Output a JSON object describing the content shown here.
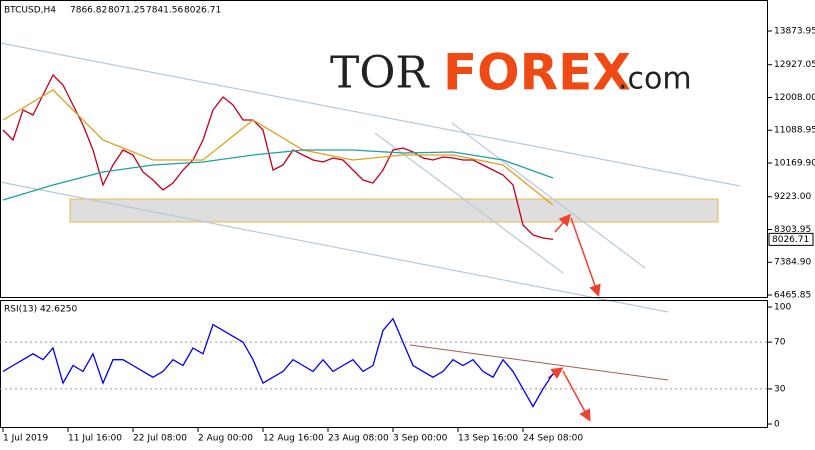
{
  "chart_data": [
    {
      "type": "line",
      "symbol": "BTCUSD,H4",
      "ohlc": [
        "7866.82",
        "8071.25",
        "7841.56",
        "8026.71"
      ],
      "watermark": [
        "TOR",
        "FOREX",
        ".com"
      ],
      "xlim": [
        -0.3,
        76.5
      ],
      "xticks": [
        {
          "value": 0,
          "label": "1 Jul 2019"
        },
        {
          "value": 6.5,
          "label": "11 Jul 16:00"
        },
        {
          "value": 13,
          "label": "22 Jul 08:00"
        },
        {
          "value": 19.5,
          "label": "2 Aug 00:00"
        },
        {
          "value": 26,
          "label": "12 Aug 16:00"
        },
        {
          "value": 32.5,
          "label": "23 Aug 08:00"
        },
        {
          "value": 39,
          "label": "3 Sep 00:00"
        },
        {
          "value": 45.5,
          "label": "13 Sep 16:00"
        },
        {
          "value": 52,
          "label": "24 Sep 08:00"
        }
      ],
      "ylim": [
        6381.7,
        14603.5
      ],
      "yticks": [
        13873.95,
        {
          "value": 12927.05,
          "label": "12927.05"
        },
        {
          "value": 12008.0,
          "label": "12008.00"
        },
        11088.95,
        {
          "value": 10169.9,
          "label": "10169.90"
        },
        {
          "value": 9223.0,
          "label": "9223.00"
        },
        8303.95,
        {
          "value": 7384.9,
          "label": "7384.90"
        },
        6465.85
      ],
      "series": [
        {
          "color": "#c0001a",
          "x": [
            0,
            1,
            2,
            3,
            4,
            5,
            6,
            7,
            8,
            9,
            10,
            11,
            12,
            13,
            14,
            15,
            16,
            17,
            18,
            19,
            20,
            21,
            22,
            23,
            24,
            25,
            26,
            27,
            28,
            29,
            30,
            31,
            32,
            33,
            34,
            35,
            36,
            37,
            38,
            39,
            40,
            41,
            42,
            43,
            44,
            45,
            46,
            47,
            48,
            49,
            50,
            51,
            52,
            53,
            54,
            55
          ],
          "values": [
            11096,
            10815,
            11657,
            11517,
            12078,
            12639,
            12359,
            11797,
            11236,
            10535,
            9553,
            10113,
            10535,
            10394,
            9917,
            9693,
            9412,
            9609,
            9973,
            10254,
            10815,
            11657,
            12022,
            11797,
            11377,
            11377,
            11096,
            9973,
            10113,
            10535,
            10394,
            10254,
            10198,
            10310,
            10254,
            9973,
            9693,
            9609,
            9973,
            10535,
            10591,
            10479,
            10310,
            10254,
            10338,
            10310,
            10254,
            10254,
            10113,
            9973,
            9833,
            9553,
            8430,
            8150,
            8066,
            8027
          ]
        },
        {
          "color": "#e0a020",
          "x": [
            0,
            5,
            10,
            15,
            20,
            25,
            30,
            35,
            40,
            45,
            50,
            55
          ],
          "values": [
            11377,
            12218,
            10815,
            10254,
            10254,
            11377,
            10535,
            10254,
            10394,
            10394,
            10113,
            8991
          ]
        },
        {
          "color": "#20a0a0",
          "x": [
            0,
            5,
            10,
            15,
            20,
            25,
            30,
            35,
            40,
            45,
            50,
            55
          ],
          "values": [
            9132,
            9553,
            9917,
            10113,
            10198,
            10394,
            10535,
            10535,
            10451,
            10479,
            10254,
            9749
          ]
        }
      ]
    },
    {
      "type": "line",
      "title": "RSI(13) 42.6250",
      "ylim": [
        -3.4,
        104.3
      ],
      "yticks": [
        100,
        70,
        30,
        0
      ],
      "series": [
        {
          "color": "#0000ee",
          "x": [
            0,
            1,
            2,
            3,
            4,
            5,
            6,
            7,
            8,
            9,
            10,
            11,
            12,
            13,
            14,
            15,
            16,
            17,
            18,
            19,
            20,
            21,
            22,
            23,
            24,
            25,
            26,
            27,
            28,
            29,
            30,
            31,
            32,
            33,
            34,
            35,
            36,
            37,
            38,
            39,
            40,
            41,
            42,
            43,
            44,
            45,
            46,
            47,
            48,
            49,
            50,
            51,
            52,
            53,
            54,
            55
          ],
          "values": [
            45,
            50,
            55,
            60,
            55,
            65,
            35,
            50,
            45,
            60,
            35,
            55,
            55,
            50,
            45,
            40,
            45,
            55,
            50,
            65,
            60,
            85,
            80,
            75,
            70,
            55,
            35,
            40,
            45,
            55,
            50,
            45,
            55,
            45,
            50,
            55,
            45,
            50,
            80,
            90,
            70,
            50,
            45,
            40,
            45,
            55,
            50,
            55,
            45,
            40,
            55,
            45,
            30,
            15,
            30,
            43
          ]
        }
      ]
    }
  ]
}
